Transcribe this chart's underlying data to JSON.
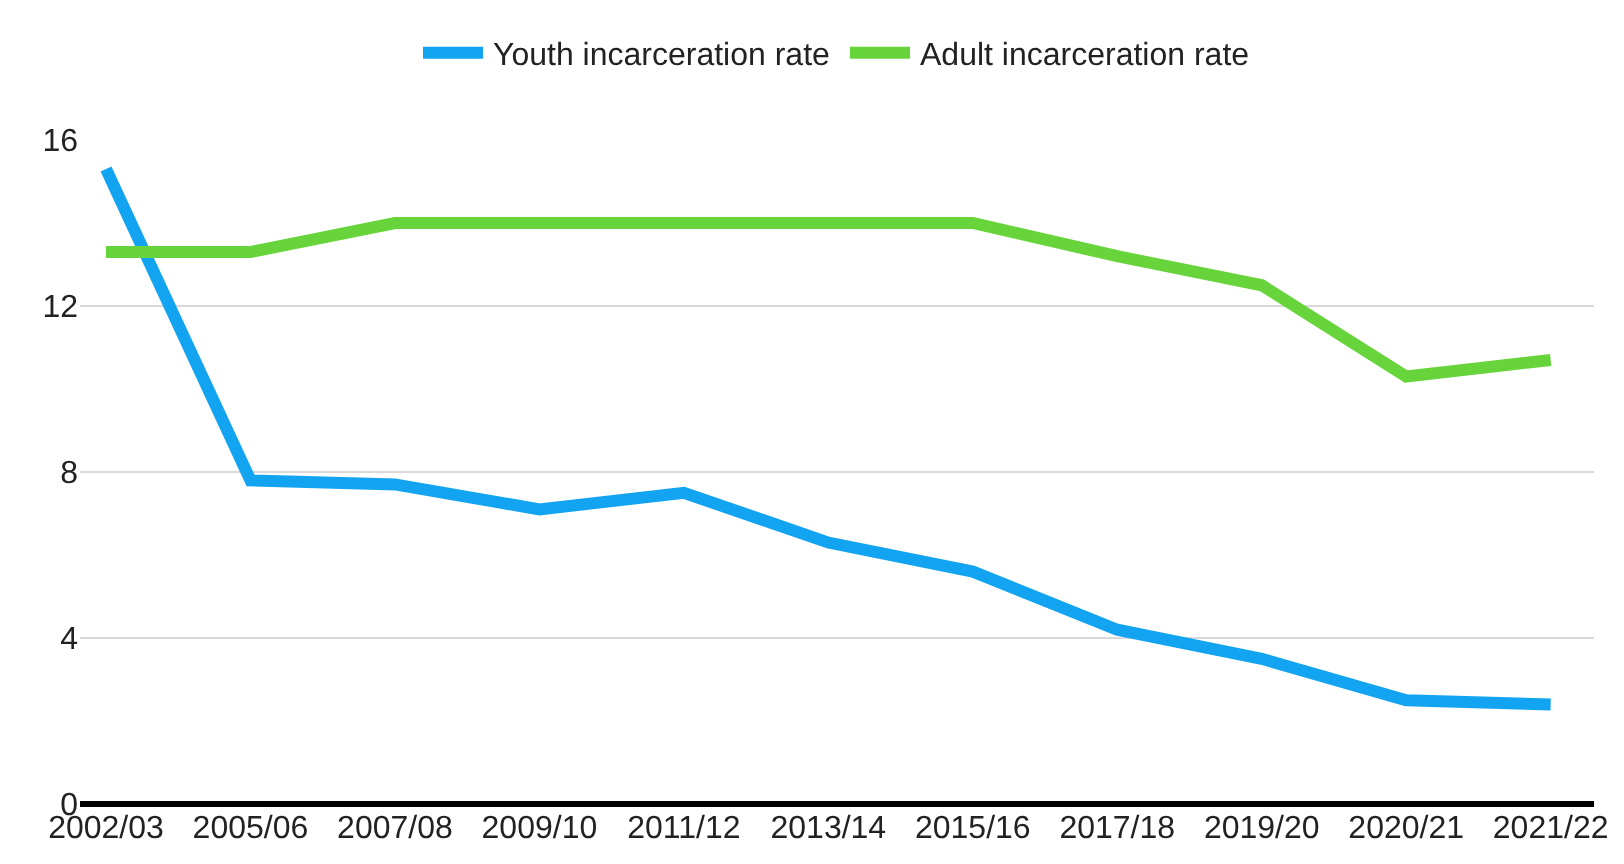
{
  "chart_data": {
    "type": "line",
    "categories": [
      "2002/03",
      "2005/06",
      "2007/08",
      "2009/10",
      "2011/12",
      "2013/14",
      "2015/16",
      "2017/18",
      "2019/20",
      "2020/21",
      "2021/22"
    ],
    "series": [
      {
        "name": "Youth incarceration rate",
        "color": "#12a4f0",
        "values": [
          15.3,
          7.8,
          7.7,
          7.1,
          7.5,
          6.3,
          5.6,
          4.2,
          3.5,
          2.5,
          2.4
        ]
      },
      {
        "name": "Adult incarceration rate",
        "color": "#66d43a",
        "values": [
          13.3,
          13.3,
          14.0,
          14.0,
          14.0,
          14.0,
          14.0,
          13.2,
          12.5,
          10.3,
          10.7
        ]
      }
    ],
    "ylim": [
      0,
      16
    ],
    "yticks": [
      0,
      4,
      8,
      12,
      16
    ],
    "grid": "y",
    "legend": "top",
    "marker": "none",
    "line_style": "solid"
  }
}
